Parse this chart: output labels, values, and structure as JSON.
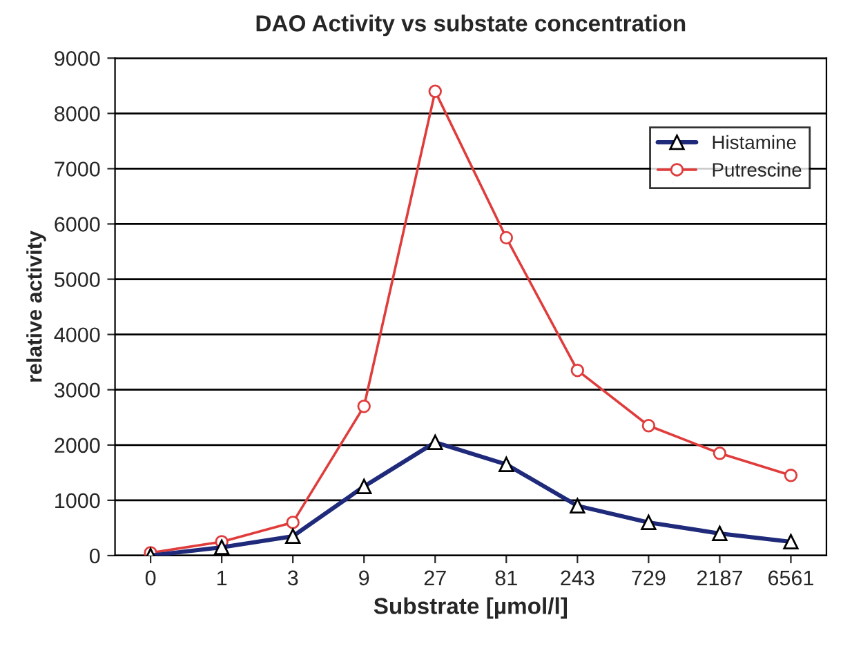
{
  "chart_data": {
    "type": "line",
    "title": "DAO Activity vs substate concentration",
    "xlabel": "Substrate [µmol/l]",
    "ylabel": "relative activity",
    "categories": [
      "0",
      "1",
      "3",
      "9",
      "27",
      "81",
      "243",
      "729",
      "2187",
      "6561"
    ],
    "series": [
      {
        "name": "Histamine",
        "color": "#1f2a7a",
        "marker": "triangle",
        "values": [
          0,
          150,
          350,
          1250,
          2050,
          1650,
          900,
          600,
          400,
          250
        ]
      },
      {
        "name": "Putrescine",
        "color": "#e03c3c",
        "marker": "circle",
        "values": [
          50,
          250,
          600,
          2700,
          8400,
          5750,
          3350,
          2350,
          1850,
          1450
        ]
      }
    ],
    "ylim": [
      0,
      9000
    ],
    "yticks": [
      0,
      1000,
      2000,
      3000,
      4000,
      5000,
      6000,
      7000,
      8000,
      9000
    ],
    "grid": "y",
    "legend": "top right"
  }
}
